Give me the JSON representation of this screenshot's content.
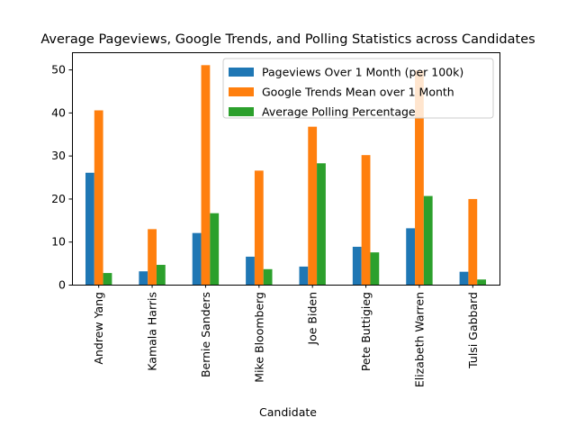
{
  "chart_data": {
    "type": "bar",
    "title": "Average Pageviews, Google Trends, and Polling Statistics across Candidates",
    "xlabel": "Candidate",
    "ylabel": "",
    "ylim": [
      0,
      54
    ],
    "yticks": [
      0,
      10,
      20,
      30,
      40,
      50
    ],
    "grid": false,
    "legend_position": "top-right",
    "categories": [
      "Andrew Yang",
      "Kamala Harris",
      "Bernie Sanders",
      "Mike Bloomberg",
      "Joe Biden",
      "Pete Buttigieg",
      "Elizabeth Warren",
      "Tulsi Gabbard"
    ],
    "series": [
      {
        "name": "Pageviews Over 1 Month (per 100k)",
        "color": "#1f77b4",
        "values": [
          26.0,
          3.1,
          12.0,
          6.5,
          4.2,
          8.8,
          13.1,
          3.0
        ]
      },
      {
        "name": "Google Trends Mean over 1 Month",
        "color": "#ff7f0e",
        "values": [
          40.5,
          12.9,
          51.0,
          26.5,
          36.7,
          30.1,
          49.8,
          19.9
        ]
      },
      {
        "name": "Average Polling Percentage",
        "color": "#2ca02c",
        "values": [
          2.7,
          4.6,
          16.6,
          3.6,
          28.2,
          7.5,
          20.6,
          1.2
        ]
      }
    ]
  }
}
